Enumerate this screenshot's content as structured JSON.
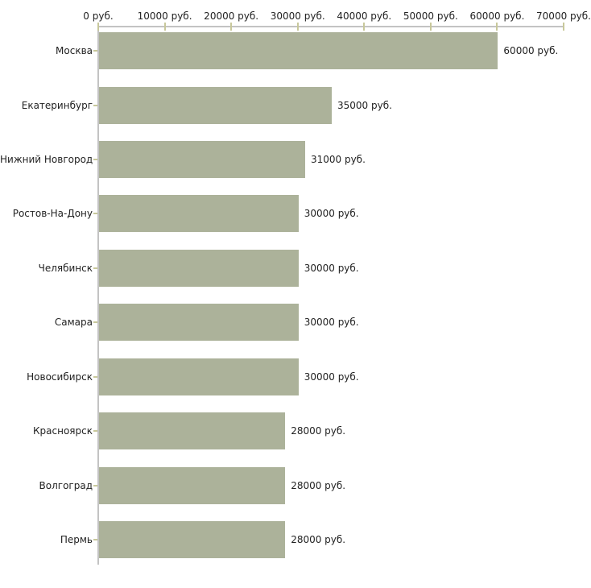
{
  "chart_data": {
    "type": "bar",
    "orientation": "horizontal",
    "title": "",
    "xlabel": "",
    "ylabel": "",
    "grid": false,
    "legend": false,
    "categories": [
      "Москва",
      "Екатеринбург",
      "Нижний Новгород",
      "Ростов-На-Дону",
      "Челябинск",
      "Самара",
      "Новосибирск",
      "Красноярск",
      "Волгоград",
      "Пермь"
    ],
    "values": [
      60000,
      35000,
      31000,
      30000,
      30000,
      30000,
      30000,
      28000,
      28000,
      28000
    ],
    "value_labels": [
      "60000 руб.",
      "35000 руб.",
      "31000 руб.",
      "30000 руб.",
      "30000 руб.",
      "30000 руб.",
      "30000 руб.",
      "28000 руб.",
      "28000 руб.",
      "28000 руб."
    ],
    "x_axis": {
      "position": "top",
      "range": [
        0,
        70000
      ],
      "tick_values": [
        0,
        10000,
        20000,
        30000,
        40000,
        50000,
        60000,
        70000
      ],
      "tick_labels": [
        "0 руб.",
        "10000 руб.",
        "20000 руб.",
        "30000 руб.",
        "40000 руб.",
        "50000 руб.",
        "60000 руб.",
        "70000 руб."
      ]
    },
    "colors": {
      "bar": "#acb29a",
      "axis_line": "#c3c3c3",
      "tick_mark": "#c8c89b",
      "text": "#222222",
      "background": "#ffffff"
    }
  }
}
